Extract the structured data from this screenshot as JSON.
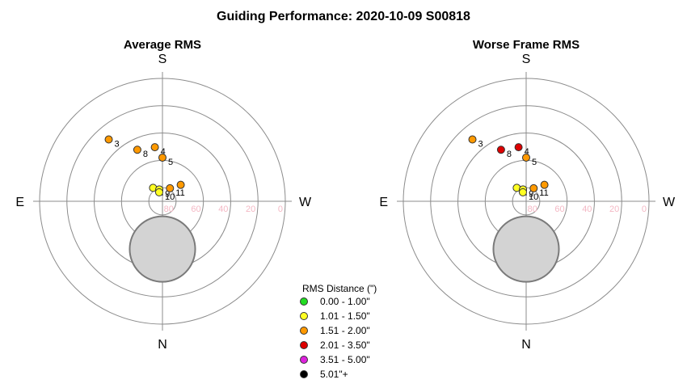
{
  "title": "Guiding Performance: 2020-10-09 S00818",
  "chart_data": [
    {
      "type": "scatter",
      "projection": "polar-altitude",
      "title": "Average RMS",
      "compass": {
        "top": "S",
        "bottom": "N",
        "left": "E",
        "right": "W"
      },
      "radial_ticks": [
        "80",
        "60",
        "40",
        "20",
        "0"
      ],
      "altitude_rings": [
        80,
        60,
        40,
        20,
        0
      ],
      "points": [
        {
          "label": "2",
          "azimuth_deg": 145,
          "altitude_deg": 78,
          "category": "1.01 - 1.50\""
        },
        {
          "label": "3",
          "azimuth_deg": 139,
          "altitude_deg": 30,
          "category": "1.51 - 2.00\""
        },
        {
          "label": "4",
          "azimuth_deg": 172,
          "altitude_deg": 50,
          "category": "1.51 - 2.00\""
        },
        {
          "label": "5",
          "azimuth_deg": 180,
          "altitude_deg": 58,
          "category": "1.51 - 2.00\""
        },
        {
          "label": "8",
          "azimuth_deg": 154,
          "altitude_deg": 48,
          "category": "1.51 - 2.00\""
        },
        {
          "label": "9",
          "azimuth_deg": 165,
          "altitude_deg": 81,
          "category": "1.01 - 1.50\""
        },
        {
          "label": "10",
          "azimuth_deg": 160,
          "altitude_deg": 83,
          "category": "1.01 - 1.50\""
        },
        {
          "label": "11",
          "azimuth_deg": 210,
          "altitude_deg": 79,
          "category": "1.51 - 2.00\""
        },
        {
          "label": "",
          "azimuth_deg": 228,
          "altitude_deg": 72,
          "category": "1.51 - 2.00\""
        }
      ],
      "excluded_zone": {
        "azimuth_deg": 0,
        "altitude_deg": 55,
        "radius_deg": 24
      }
    },
    {
      "type": "scatter",
      "projection": "polar-altitude",
      "title": "Worse Frame RMS",
      "compass": {
        "top": "S",
        "bottom": "N",
        "left": "E",
        "right": "W"
      },
      "radial_ticks": [
        "80",
        "60",
        "40",
        "20",
        "0"
      ],
      "altitude_rings": [
        80,
        60,
        40,
        20,
        0
      ],
      "points": [
        {
          "label": "2",
          "azimuth_deg": 145,
          "altitude_deg": 78,
          "category": "1.01 - 1.50\""
        },
        {
          "label": "3",
          "azimuth_deg": 139,
          "altitude_deg": 30,
          "category": "1.51 - 2.00\""
        },
        {
          "label": "4",
          "azimuth_deg": 172,
          "altitude_deg": 50,
          "category": "2.01 - 3.50\""
        },
        {
          "label": "5",
          "azimuth_deg": 180,
          "altitude_deg": 58,
          "category": "1.51 - 2.00\""
        },
        {
          "label": "8",
          "azimuth_deg": 154,
          "altitude_deg": 48,
          "category": "2.01 - 3.50\""
        },
        {
          "label": "9",
          "azimuth_deg": 165,
          "altitude_deg": 81,
          "category": "1.01 - 1.50\""
        },
        {
          "label": "10",
          "azimuth_deg": 160,
          "altitude_deg": 83,
          "category": "1.01 - 1.50\""
        },
        {
          "label": "11",
          "azimuth_deg": 210,
          "altitude_deg": 79,
          "category": "1.51 - 2.00\""
        },
        {
          "label": "",
          "azimuth_deg": 228,
          "altitude_deg": 72,
          "category": "1.51 - 2.00\""
        }
      ],
      "excluded_zone": {
        "azimuth_deg": 0,
        "altitude_deg": 55,
        "radius_deg": 24
      }
    }
  ],
  "legend": {
    "title": "RMS Distance (\")",
    "entries": [
      {
        "label": "0.00 - 1.00\"",
        "color": "#22dd22"
      },
      {
        "label": "1.01 - 1.50\"",
        "color": "#ffff22"
      },
      {
        "label": "1.51 - 2.00\"",
        "color": "#ff9900"
      },
      {
        "label": "2.01 - 3.50\"",
        "color": "#dd0000"
      },
      {
        "label": "3.51 - 5.00\"",
        "color": "#dd22dd"
      },
      {
        "label": "5.01\"+",
        "color": "#000000"
      }
    ]
  }
}
